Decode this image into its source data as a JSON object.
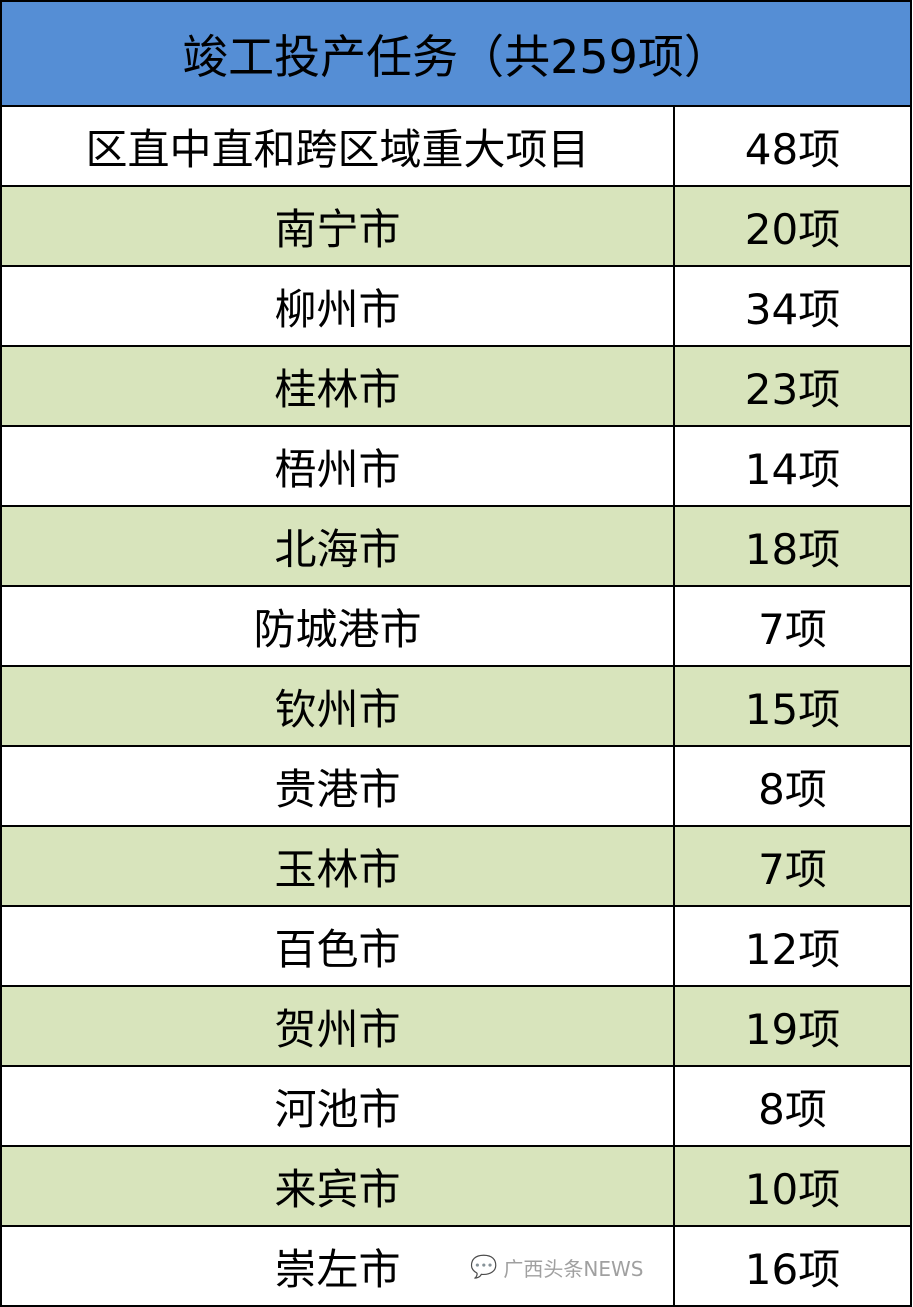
{
  "title": "竣工投产任务（共259项）",
  "colors": {
    "header_bg": "#558ED5",
    "alt_row_bg": "#D8E4BC"
  },
  "rows": [
    {
      "name": "区直中直和跨区域重大项目",
      "count": "48项"
    },
    {
      "name": "南宁市",
      "count": "20项"
    },
    {
      "name": "柳州市",
      "count": "34项"
    },
    {
      "name": "桂林市",
      "count": "23项"
    },
    {
      "name": "梧州市",
      "count": "14项"
    },
    {
      "name": "北海市",
      "count": "18项"
    },
    {
      "name": "防城港市",
      "count": "7项"
    },
    {
      "name": "钦州市",
      "count": "15项"
    },
    {
      "name": "贵港市",
      "count": "8项"
    },
    {
      "name": "玉林市",
      "count": "7项"
    },
    {
      "name": "百色市",
      "count": "12项"
    },
    {
      "name": "贺州市",
      "count": "19项"
    },
    {
      "name": "河池市",
      "count": "8项"
    },
    {
      "name": "来宾市",
      "count": "10项"
    },
    {
      "name": "崇左市",
      "count": "16项"
    }
  ],
  "watermark": {
    "text": "广西头条NEWS",
    "icon": "wechat-icon"
  }
}
